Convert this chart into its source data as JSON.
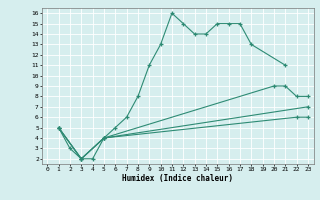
{
  "xlabel": "Humidex (Indice chaleur)",
  "background_color": "#d6eeee",
  "grid_color": "#ffffff",
  "line_color": "#2e8b74",
  "xlim": [
    -0.5,
    23.5
  ],
  "ylim": [
    1.5,
    16.5
  ],
  "xticks": [
    0,
    1,
    2,
    3,
    4,
    5,
    6,
    7,
    8,
    9,
    10,
    11,
    12,
    13,
    14,
    15,
    16,
    17,
    18,
    19,
    20,
    21,
    22,
    23
  ],
  "yticks": [
    2,
    3,
    4,
    5,
    6,
    7,
    8,
    9,
    10,
    11,
    12,
    13,
    14,
    15,
    16
  ],
  "line1_x": [
    1,
    2,
    3,
    4,
    5,
    6,
    7,
    8,
    9,
    10,
    11,
    12,
    13,
    14,
    15,
    16,
    17,
    18,
    21
  ],
  "line1_y": [
    5,
    3,
    2,
    2,
    4,
    5,
    6,
    8,
    11,
    13,
    16,
    15,
    14,
    14,
    15,
    15,
    15,
    13,
    11
  ],
  "line2_x": [
    1,
    3,
    5,
    23
  ],
  "line2_y": [
    5,
    2,
    4,
    7
  ],
  "line3_x": [
    1,
    3,
    5,
    20,
    21,
    22,
    23
  ],
  "line3_y": [
    5,
    2,
    4,
    9,
    9,
    8,
    8
  ],
  "line4_x": [
    1,
    3,
    5,
    22,
    23
  ],
  "line4_y": [
    5,
    2,
    4,
    6,
    6
  ]
}
